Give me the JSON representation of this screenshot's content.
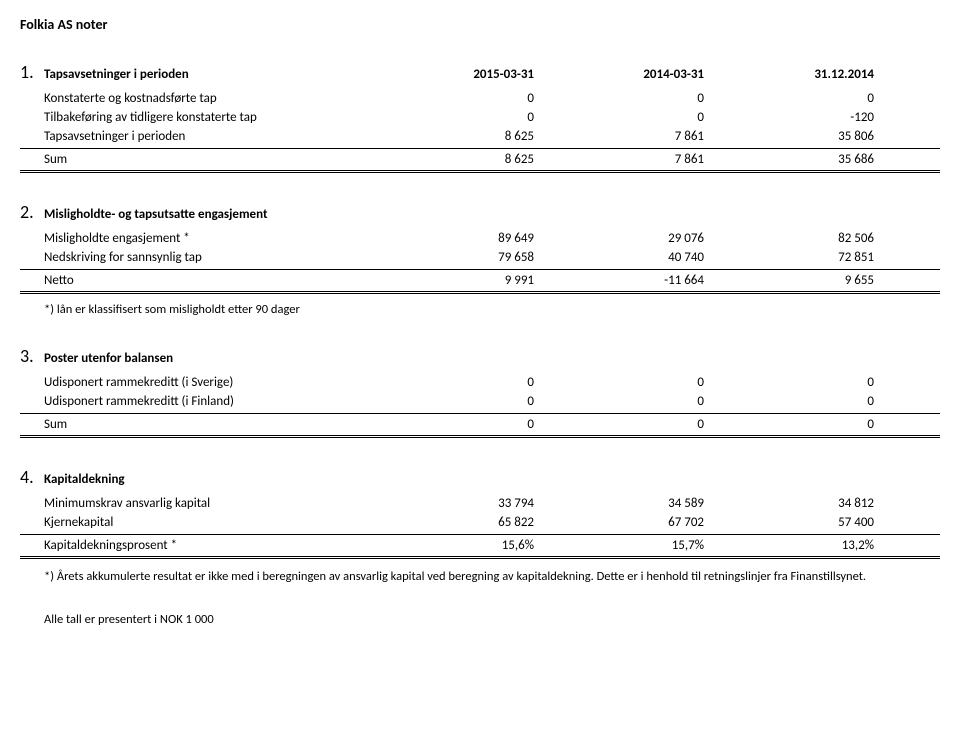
{
  "doc_title": "Folkia AS noter",
  "columns": [
    "2015-03-31",
    "2014-03-31",
    "31.12.2014"
  ],
  "sections": {
    "s1": {
      "num": "1.",
      "title": "Tapsavsetninger i perioden",
      "rows": [
        {
          "label": "Konstaterte og kostnadsførte tap",
          "c": [
            "0",
            "0",
            "0"
          ]
        },
        {
          "label": "Tilbakeføring av tidligere konstaterte tap",
          "c": [
            "0",
            "0",
            "-120"
          ]
        },
        {
          "label": "Tapsavsetninger i perioden",
          "c": [
            "8 625",
            "7 861",
            "35 806"
          ]
        }
      ],
      "sum_label": "Sum",
      "sum": [
        "8 625",
        "7 861",
        "35 686"
      ]
    },
    "s2": {
      "num": "2.",
      "title": "Misligholdte- og tapsutsatte engasjement",
      "rows": [
        {
          "label": "Misligholdte engasjement *",
          "c": [
            "89 649",
            "29 076",
            "82 506"
          ]
        },
        {
          "label": "Nedskriving for sannsynlig tap",
          "c": [
            "79 658",
            "40 740",
            "72 851"
          ]
        }
      ],
      "sum_label": "Netto",
      "sum": [
        "9 991",
        "-11 664",
        "9 655"
      ],
      "note": "*) lån er klassifisert som misligholdt etter 90 dager"
    },
    "s3": {
      "num": "3.",
      "title": "Poster utenfor balansen",
      "rows": [
        {
          "label": "Udisponert rammekreditt (i Sverige)",
          "c": [
            "0",
            "0",
            "0"
          ]
        },
        {
          "label": "Udisponert rammekreditt (i Finland)",
          "c": [
            "0",
            "0",
            "0"
          ]
        }
      ],
      "sum_label": "Sum",
      "sum": [
        "0",
        "0",
        "0"
      ]
    },
    "s4": {
      "num": "4.",
      "title": "Kapitaldekning",
      "rows": [
        {
          "label": "Minimumskrav ansvarlig kapital",
          "c": [
            "33 794",
            "34 589",
            "34 812"
          ]
        },
        {
          "label": "Kjernekapital",
          "c": [
            "65 822",
            "67 702",
            "57 400"
          ]
        }
      ],
      "sum_label": "Kapitaldekningsprosent *",
      "sum": [
        "15,6%",
        "15,7%",
        "13,2%"
      ],
      "footnote": "*) Årets akkumulerte resultat er ikke med i beregningen av ansvarlig kapital ved beregning av kapitaldekning. Dette er i henhold til retningslinjer fra Finanstillsynet."
    }
  },
  "bottom_note": "Alle tall er presentert i NOK 1 000"
}
